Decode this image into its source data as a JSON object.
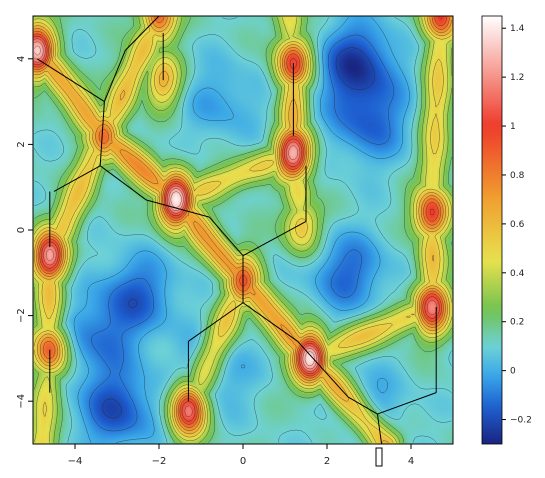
{
  "chart_data": {
    "type": "heatmap",
    "title": "",
    "xlabel": "",
    "ylabel": "",
    "xlim": [
      -5,
      5
    ],
    "ylim": [
      -5,
      5
    ],
    "x_ticks": [
      -4,
      -2,
      0,
      2,
      4
    ],
    "x_tick_labels": [
      "−4",
      "−2",
      "0",
      "2",
      "4"
    ],
    "y_ticks": [
      -4,
      -2,
      0,
      2,
      4
    ],
    "y_tick_labels": [
      "−4",
      "−2",
      "0",
      "2",
      "4"
    ],
    "colorbar": {
      "range": [
        -0.3,
        1.45
      ],
      "ticks": [
        -0.2,
        0,
        0.2,
        0.4,
        0.6,
        0.8,
        1,
        1.2,
        1.4
      ],
      "tick_labels": [
        "−0.2",
        "0",
        "0.2",
        "0.4",
        "0.6",
        "0.8",
        "1",
        "1.2",
        "1.4"
      ],
      "colors": [
        "#1a237e",
        "#1e5fd0",
        "#3aa7e8",
        "#6ed2d6",
        "#72c24f",
        "#e8e14e",
        "#f0a030",
        "#ee3b2a",
        "#ffffff"
      ]
    },
    "peaks": [
      {
        "x": -4.9,
        "y": 4.2,
        "value": 1.3
      },
      {
        "x": -1.6,
        "y": 0.7,
        "value": 1.45
      },
      {
        "x": -4.6,
        "y": -0.6,
        "value": 1.25
      },
      {
        "x": -4.6,
        "y": -2.8,
        "value": 0.95
      },
      {
        "x": -1.3,
        "y": -4.2,
        "value": 1.2
      },
      {
        "x": 1.2,
        "y": 3.9,
        "value": 1.05
      },
      {
        "x": 1.2,
        "y": 1.8,
        "value": 1.3
      },
      {
        "x": 1.6,
        "y": -3.0,
        "value": 1.4
      },
      {
        "x": 4.5,
        "y": 0.4,
        "value": 1.05
      },
      {
        "x": 4.5,
        "y": -1.8,
        "value": 1.15
      },
      {
        "x": 4.7,
        "y": 5.0,
        "value": 1.0
      },
      {
        "x": -2.0,
        "y": 5.0,
        "value": 0.9
      },
      {
        "x": -3.3,
        "y": 2.2,
        "value": 0.85
      },
      {
        "x": 0.0,
        "y": -1.2,
        "value": 0.9
      },
      {
        "x": -1.9,
        "y": 3.5,
        "value": 0.6
      },
      {
        "x": 1.4,
        "y": 0.1,
        "value": 0.6
      }
    ],
    "ridges": [
      {
        "from": [
          -4.9,
          4.2
        ],
        "to": [
          -3.3,
          2.2
        ],
        "value": 0.65
      },
      {
        "from": [
          -3.3,
          2.2
        ],
        "to": [
          -1.6,
          0.7
        ],
        "value": 0.7
      },
      {
        "from": [
          -1.6,
          0.7
        ],
        "to": [
          0.0,
          -1.2
        ],
        "value": 0.7
      },
      {
        "from": [
          0.0,
          -1.2
        ],
        "to": [
          1.6,
          -3.0
        ],
        "value": 0.7
      },
      {
        "from": [
          1.6,
          -3.0
        ],
        "to": [
          3.4,
          -5.0
        ],
        "value": 0.65
      },
      {
        "from": [
          -3.3,
          2.2
        ],
        "to": [
          -4.6,
          -0.6
        ],
        "value": 0.5
      },
      {
        "from": [
          -4.6,
          -0.6
        ],
        "to": [
          -4.6,
          -2.8
        ],
        "value": 0.55
      },
      {
        "from": [
          -4.6,
          -2.8
        ],
        "to": [
          -4.8,
          -5.0
        ],
        "value": 0.45
      },
      {
        "from": [
          -1.6,
          0.7
        ],
        "to": [
          1.2,
          1.8
        ],
        "value": 0.45
      },
      {
        "from": [
          1.2,
          1.8
        ],
        "to": [
          1.2,
          3.9
        ],
        "value": 0.6
      },
      {
        "from": [
          1.2,
          3.9
        ],
        "to": [
          1.1,
          5.0
        ],
        "value": 0.45
      },
      {
        "from": [
          -3.3,
          2.2
        ],
        "to": [
          -2.0,
          5.0
        ],
        "value": 0.55
      },
      {
        "from": [
          0.0,
          -1.2
        ],
        "to": [
          -1.3,
          -4.2
        ],
        "value": 0.5
      },
      {
        "from": [
          1.6,
          -3.0
        ],
        "to": [
          4.5,
          -1.8
        ],
        "value": 0.5
      },
      {
        "from": [
          4.5,
          -1.8
        ],
        "to": [
          4.5,
          0.4
        ],
        "value": 0.55
      },
      {
        "from": [
          4.5,
          0.4
        ],
        "to": [
          4.7,
          5.0
        ],
        "value": 0.45
      },
      {
        "from": [
          1.2,
          1.8
        ],
        "to": [
          1.4,
          0.1
        ],
        "value": 0.45
      }
    ],
    "lattice_edges": [
      [
        [
          -4.9,
          4.0
        ],
        [
          -3.3,
          3.0
        ]
      ],
      [
        [
          -3.3,
          3.0
        ],
        [
          -2.8,
          4.2
        ]
      ],
      [
        [
          -2.8,
          4.2
        ],
        [
          -2.0,
          5.0
        ]
      ],
      [
        [
          -3.3,
          3.0
        ],
        [
          -3.4,
          1.5
        ]
      ],
      [
        [
          -3.4,
          1.5
        ],
        [
          -4.5,
          0.9
        ]
      ],
      [
        [
          -3.4,
          1.5
        ],
        [
          -2.3,
          0.7
        ]
      ],
      [
        [
          -2.3,
          0.7
        ],
        [
          -0.8,
          0.3
        ]
      ],
      [
        [
          -0.8,
          0.3
        ],
        [
          0.0,
          -0.6
        ]
      ],
      [
        [
          0.0,
          -0.6
        ],
        [
          1.5,
          0.2
        ]
      ],
      [
        [
          1.5,
          0.2
        ],
        [
          1.5,
          1.5
        ]
      ],
      [
        [
          0.0,
          -0.6
        ],
        [
          0.0,
          -1.7
        ]
      ],
      [
        [
          0.0,
          -1.7
        ],
        [
          -1.3,
          -2.6
        ]
      ],
      [
        [
          -1.3,
          -2.6
        ],
        [
          -1.3,
          -4.0
        ]
      ],
      [
        [
          0.0,
          -1.7
        ],
        [
          1.3,
          -2.6
        ]
      ],
      [
        [
          1.3,
          -2.6
        ],
        [
          2.5,
          -3.9
        ]
      ],
      [
        [
          2.5,
          -3.9
        ],
        [
          3.2,
          -4.3
        ]
      ],
      [
        [
          3.2,
          -4.3
        ],
        [
          4.6,
          -3.8
        ]
      ],
      [
        [
          3.2,
          -4.3
        ],
        [
          3.3,
          -5.0
        ]
      ],
      [
        [
          4.6,
          -3.8
        ],
        [
          4.6,
          -1.8
        ]
      ],
      [
        [
          -4.6,
          0.9
        ],
        [
          -4.6,
          -0.4
        ]
      ],
      [
        [
          -1.9,
          3.5
        ],
        [
          -1.9,
          4.6
        ]
      ],
      [
        [
          1.2,
          3.9
        ],
        [
          1.2,
          2.2
        ]
      ],
      [
        [
          -4.6,
          -2.8
        ],
        [
          -4.6,
          -3.8
        ]
      ]
    ],
    "valleys": [
      {
        "x": 2.7,
        "y": 3.9,
        "value": -0.3
      },
      {
        "x": -3.0,
        "y": -4.2,
        "value": -0.25
      },
      {
        "x": 3.0,
        "y": 2.5,
        "value": -0.2
      },
      {
        "x": -2.5,
        "y": -1.5,
        "value": -0.2
      },
      {
        "x": 2.5,
        "y": -1.0,
        "value": -0.2
      },
      {
        "x": -0.5,
        "y": 3.0,
        "value": -0.1
      },
      {
        "x": -3.5,
        "y": -2.5,
        "value": -0.15
      },
      {
        "x": 3.0,
        "y": -4.2,
        "value": -0.1
      },
      {
        "x": -0.7,
        "y": -3.3,
        "value": -0.1
      }
    ]
  }
}
